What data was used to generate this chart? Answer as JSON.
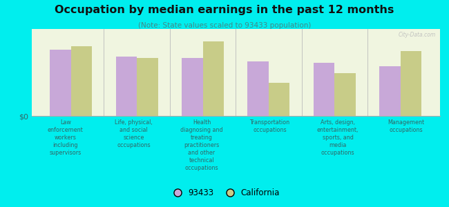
{
  "title": "Occupation by median earnings in the past 12 months",
  "subtitle": "(Note: State values scaled to 93433 population)",
  "background_color": "#00eeee",
  "plot_bg_top": "#f0f5e0",
  "plot_bg_bottom": "#e0ead0",
  "categories": [
    "Law\nenforcement\nworkers\nincluding\nsupervisors",
    "Life, physical,\nand social\nscience\noccupations",
    "Health\ndiagnosing and\ntreating\npractitioners\nand other\ntechnical\noccupations",
    "Transportation\noccupations",
    "Arts, design,\nentertainment,\nsports, and\nmedia\noccupations",
    "Management\noccupations"
  ],
  "values_93433": [
    0.8,
    0.72,
    0.7,
    0.66,
    0.64,
    0.6
  ],
  "values_california": [
    0.84,
    0.7,
    0.9,
    0.4,
    0.52,
    0.78
  ],
  "color_93433": "#c8a8d8",
  "color_california": "#c8cc88",
  "bar_width": 0.32,
  "legend_labels": [
    "93433",
    "California"
  ],
  "watermark": "City-Data.com",
  "title_color": "#111111",
  "subtitle_color": "#448888",
  "label_color": "#336666"
}
